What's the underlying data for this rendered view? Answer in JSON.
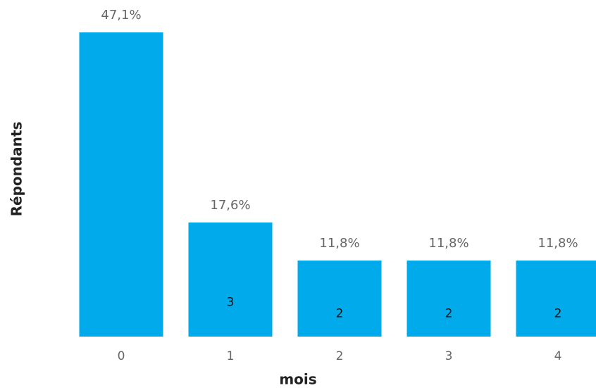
{
  "chart_data": {
    "type": "bar",
    "x_label": "mois",
    "y_label": "Répondants",
    "categories": [
      "0",
      "1",
      "2",
      "3",
      "4"
    ],
    "values": [
      8,
      3,
      2,
      2,
      2
    ],
    "value_labels": [
      null,
      "3",
      "2",
      "2",
      "2"
    ],
    "percentages": [
      47.1,
      17.6,
      11.8,
      11.8,
      11.8
    ],
    "percentage_labels": [
      "47,1%",
      "17,6%",
      "11,8%",
      "11,8%",
      "11,8%"
    ],
    "color": "#01abeb",
    "ylim": [
      0,
      8
    ]
  }
}
